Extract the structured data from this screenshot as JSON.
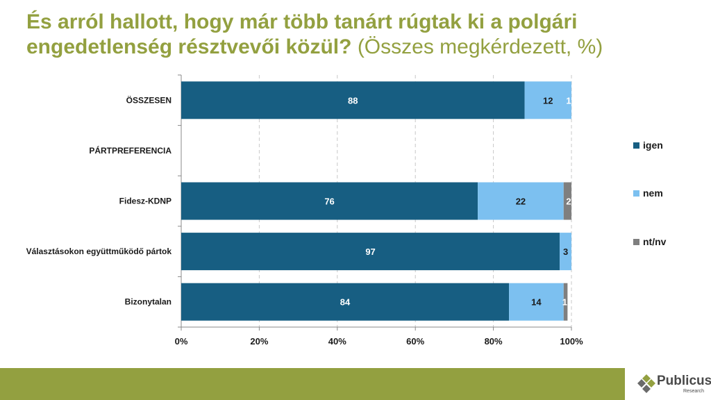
{
  "title_bold": "És arról hallott, hogy már több tanárt rúgtak ki a polgári engedetlenség résztvevői közül?",
  "title_light": " (Összes megkérdezett, %)",
  "logo": {
    "name": "Publicus",
    "sub": "Research"
  },
  "colors": {
    "igen": "#175e82",
    "nem": "#7cc0f0",
    "ntnv": "#7f7f7f",
    "accent": "#93a040"
  },
  "chart_data": {
    "type": "bar",
    "orientation": "horizontal",
    "stacked": true,
    "categories": [
      "ÖSSZESEN",
      "PÁRTPREFERENCIA",
      "Fidesz-KDNP",
      "Választásokon együttműködő pártok",
      "Bizonytalan"
    ],
    "series": [
      {
        "name": "igen",
        "values": [
          88,
          null,
          76,
          97,
          84
        ]
      },
      {
        "name": "nem",
        "values": [
          12,
          null,
          22,
          3,
          14
        ]
      },
      {
        "name": "nt/nv",
        "values": [
          1,
          null,
          2,
          0,
          1
        ]
      }
    ],
    "xlim": [
      0,
      100
    ],
    "xticks": [
      "0%",
      "20%",
      "40%",
      "60%",
      "80%",
      "100%"
    ],
    "grid": true,
    "legend_position": "right"
  }
}
